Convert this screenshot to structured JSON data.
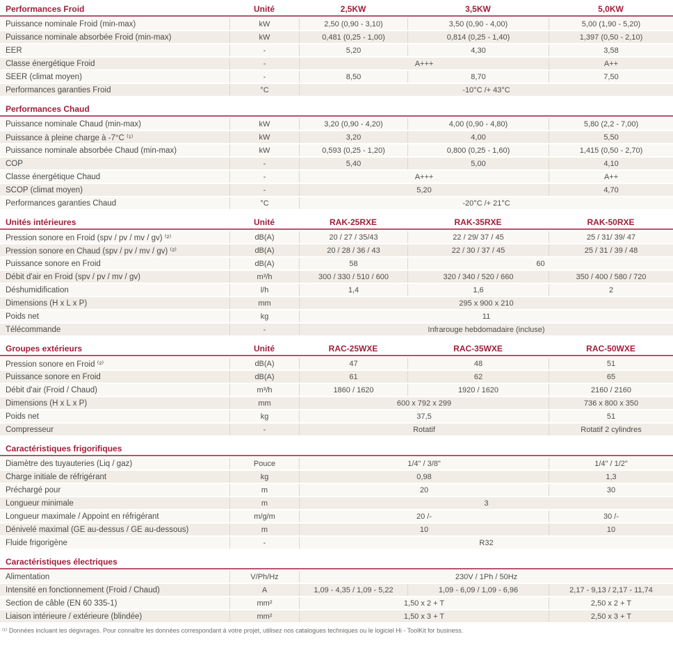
{
  "table": {
    "unit_header": "Unité",
    "sections": [
      {
        "id": "performances-froid",
        "title": "Performances Froid",
        "show_columns": true,
        "columns": [
          "2,5KW",
          "3,5KW",
          "5,0KW"
        ],
        "rows": [
          {
            "label": "Puissance nominale Froid (min-max)",
            "unit": "kW",
            "cells": [
              {
                "text": "2,50 (0,90 - 3,10)",
                "span": 1
              },
              {
                "text": "3,50 (0,90 - 4,00)",
                "span": 1
              },
              {
                "text": "5,00 (1,90 - 5,20)",
                "span": 1
              }
            ]
          },
          {
            "label": "Puissance nominale absorbée Froid (min-max)",
            "unit": "kW",
            "cells": [
              {
                "text": "0,481 (0,25 - 1,00)",
                "span": 1
              },
              {
                "text": "0,814 (0,25 - 1,40)",
                "span": 1
              },
              {
                "text": "1,397 (0,50 - 2,10)",
                "span": 1
              }
            ]
          },
          {
            "label": "EER",
            "unit": "-",
            "cells": [
              {
                "text": "5,20",
                "span": 1
              },
              {
                "text": "4,30",
                "span": 1
              },
              {
                "text": "3,58",
                "span": 1
              }
            ]
          },
          {
            "label": "Classe énergétique Froid",
            "unit": "-",
            "cells": [
              {
                "text": "A+++",
                "span": 2
              },
              {
                "text": "A++",
                "span": 1
              }
            ]
          },
          {
            "label": "SEER (climat moyen)",
            "unit": "-",
            "cells": [
              {
                "text": "8,50",
                "span": 1
              },
              {
                "text": "8,70",
                "span": 1
              },
              {
                "text": "7,50",
                "span": 1
              }
            ]
          },
          {
            "label": "Performances garanties Froid",
            "unit": "°C",
            "cells": [
              {
                "text": "-10°C /+ 43°C",
                "span": 3
              }
            ]
          }
        ]
      },
      {
        "id": "performances-chaud",
        "title": "Performances Chaud",
        "show_columns": false,
        "columns": [],
        "rows": [
          {
            "label": "Puissance nominale Chaud (min-max)",
            "unit": "kW",
            "cells": [
              {
                "text": "3,20 (0,90 - 4,20)",
                "span": 1
              },
              {
                "text": "4,00 (0,90 - 4,80)",
                "span": 1
              },
              {
                "text": "5,80 (2,2 - 7,00)",
                "span": 1
              }
            ]
          },
          {
            "label": "Puissance à pleine charge à -7°C ⁽¹⁾",
            "unit": "kW",
            "cells": [
              {
                "text": "3,20",
                "span": 1
              },
              {
                "text": "4,00",
                "span": 1
              },
              {
                "text": "5,50",
                "span": 1
              }
            ]
          },
          {
            "label": "Puissance nominale absorbée Chaud (min-max)",
            "unit": "kW",
            "cells": [
              {
                "text": "0,593 (0,25 - 1,20)",
                "span": 1
              },
              {
                "text": "0,800 (0,25 - 1,60)",
                "span": 1
              },
              {
                "text": "1,415 (0,50 - 2,70)",
                "span": 1
              }
            ]
          },
          {
            "label": "COP",
            "unit": "-",
            "cells": [
              {
                "text": "5,40",
                "span": 1
              },
              {
                "text": "5,00",
                "span": 1
              },
              {
                "text": "4,10",
                "span": 1
              }
            ]
          },
          {
            "label": "Classe énergétique Chaud",
            "unit": "-",
            "cells": [
              {
                "text": "A+++",
                "span": 2
              },
              {
                "text": "A++",
                "span": 1
              }
            ]
          },
          {
            "label": "SCOP (climat moyen)",
            "unit": "-",
            "cells": [
              {
                "text": "5,20",
                "span": 2
              },
              {
                "text": "4,70",
                "span": 1
              }
            ]
          },
          {
            "label": "Performances garanties Chaud",
            "unit": "°C",
            "cells": [
              {
                "text": "-20°C /+ 21°C",
                "span": 3
              }
            ]
          }
        ]
      },
      {
        "id": "unites-interieures",
        "title": "Unités intérieures",
        "show_columns": true,
        "columns": [
          "RAK-25RXE",
          "RAK-35RXE",
          "RAK-50RXE"
        ],
        "rows": [
          {
            "label": "Pression sonore en Froid (spv / pv / mv / gv) ⁽²⁾",
            "unit": "dB(A)",
            "cells": [
              {
                "text": "20 / 27 / 35/43",
                "span": 1
              },
              {
                "text": "22 / 29/ 37 / 45",
                "span": 1
              },
              {
                "text": "25 / 31/ 39/ 47",
                "span": 1
              }
            ]
          },
          {
            "label": "Pression sonore en Chaud (spv / pv / mv / gv) ⁽²⁾",
            "unit": "dB(A)",
            "cells": [
              {
                "text": "20 / 28 / 36 / 43",
                "span": 1
              },
              {
                "text": "22 / 30 / 37 / 45",
                "span": 1
              },
              {
                "text": "25 / 31 / 39 / 48",
                "span": 1
              }
            ]
          },
          {
            "label": "Puissance sonore en Froid",
            "unit": "dB(A)",
            "cells": [
              {
                "text": "58",
                "span": 1
              },
              {
                "text": "60",
                "span": 2
              }
            ]
          },
          {
            "label": "Débit d'air en Froid (spv / pv / mv / gv)",
            "unit": "m³/h",
            "cells": [
              {
                "text": "300 / 330 / 510 / 600",
                "span": 1
              },
              {
                "text": "320 / 340 / 520 / 660",
                "span": 1
              },
              {
                "text": "350 / 400 / 580 / 720",
                "span": 1
              }
            ]
          },
          {
            "label": "Déshumidification",
            "unit": "l/h",
            "cells": [
              {
                "text": "1,4",
                "span": 1
              },
              {
                "text": "1,6",
                "span": 1
              },
              {
                "text": "2",
                "span": 1
              }
            ]
          },
          {
            "label": "Dimensions (H x L x P)",
            "unit": "mm",
            "cells": [
              {
                "text": "295 x 900 x 210",
                "span": 3
              }
            ]
          },
          {
            "label": "Poids net",
            "unit": "kg",
            "cells": [
              {
                "text": "11",
                "span": 3
              }
            ]
          },
          {
            "label": "Télécommande",
            "unit": "-",
            "cells": [
              {
                "text": "Infrarouge hebdomadaire (incluse)",
                "span": 3
              }
            ]
          }
        ]
      },
      {
        "id": "groupes-exterieurs",
        "title": "Groupes extérieurs",
        "show_columns": true,
        "columns": [
          "RAC-25WXE",
          "RAC-35WXE",
          "RAC-50WXE"
        ],
        "rows": [
          {
            "label": "Pression sonore en Froid ⁽²⁾",
            "unit": "dB(A)",
            "cells": [
              {
                "text": "47",
                "span": 1
              },
              {
                "text": "48",
                "span": 1
              },
              {
                "text": "51",
                "span": 1
              }
            ]
          },
          {
            "label": "Puissance sonore en Froid",
            "unit": "dB(A)",
            "cells": [
              {
                "text": "61",
                "span": 1
              },
              {
                "text": "62",
                "span": 1
              },
              {
                "text": "65",
                "span": 1
              }
            ]
          },
          {
            "label": "Débit d'air (Froid / Chaud)",
            "unit": "m³/h",
            "cells": [
              {
                "text": "1860 / 1620",
                "span": 1
              },
              {
                "text": "1920 / 1620",
                "span": 1
              },
              {
                "text": "2160 / 2160",
                "span": 1
              }
            ]
          },
          {
            "label": "Dimensions (H x L x P)",
            "unit": "mm",
            "cells": [
              {
                "text": "600 x 792 x 299",
                "span": 2
              },
              {
                "text": "736 x 800 x 350",
                "span": 1
              }
            ]
          },
          {
            "label": "Poids net",
            "unit": "kg",
            "cells": [
              {
                "text": "37,5",
                "span": 2
              },
              {
                "text": "51",
                "span": 1
              }
            ]
          },
          {
            "label": "Compresseur",
            "unit": "-",
            "cells": [
              {
                "text": "Rotatif",
                "span": 2
              },
              {
                "text": "Rotatif 2 cylindres",
                "span": 1
              }
            ]
          }
        ]
      },
      {
        "id": "caracteristiques-frigorifiques",
        "title": "Caractéristiques frigorifiques",
        "show_columns": false,
        "columns": [],
        "rows": [
          {
            "label": "Diamètre des tuyauteries (Liq / gaz)",
            "unit": "Pouce",
            "cells": [
              {
                "text": "1/4\" / 3/8\"",
                "span": 2
              },
              {
                "text": "1/4\" / 1/2\"",
                "span": 1
              }
            ]
          },
          {
            "label": "Charge initiale de réfrigérant",
            "unit": "kg",
            "cells": [
              {
                "text": "0,98",
                "span": 2
              },
              {
                "text": "1,3",
                "span": 1
              }
            ]
          },
          {
            "label": "Préchargé pour",
            "unit": "m",
            "cells": [
              {
                "text": "20",
                "span": 2
              },
              {
                "text": "30",
                "span": 1
              }
            ]
          },
          {
            "label": "Longueur minimale",
            "unit": "m",
            "cells": [
              {
                "text": "3",
                "span": 3
              }
            ]
          },
          {
            "label": "Longueur maximale / Appoint en réfrigérant",
            "unit": "m/g/m",
            "cells": [
              {
                "text": "20 /-",
                "span": 2
              },
              {
                "text": "30 /-",
                "span": 1
              }
            ]
          },
          {
            "label": "Dénivelé maximal (GE au-dessus / GE au-dessous)",
            "unit": "m",
            "cells": [
              {
                "text": "10",
                "span": 2
              },
              {
                "text": "10",
                "span": 1
              }
            ]
          },
          {
            "label": "Fluide frigorigène",
            "unit": "-",
            "cells": [
              {
                "text": "R32",
                "span": 3
              }
            ]
          }
        ]
      },
      {
        "id": "caracteristiques-electriques",
        "title": "Caractéristiques électriques",
        "show_columns": false,
        "columns": [],
        "rows": [
          {
            "label": "Alimentation",
            "unit": "V/Ph/Hz",
            "cells": [
              {
                "text": "230V / 1Ph / 50Hz",
                "span": 3
              }
            ]
          },
          {
            "label": "Intensité en fonctionnement (Froid / Chaud)",
            "unit": "A",
            "cells": [
              {
                "text": "1,09 - 4,35 / 1,09 - 5,22",
                "span": 1
              },
              {
                "text": "1,09 - 6,09 / 1,09 - 6,96",
                "span": 1
              },
              {
                "text": "2,17 - 9,13 / 2,17 - 11,74",
                "span": 1
              }
            ]
          },
          {
            "label": "Section de câble (EN 60 335-1)",
            "unit": "mm²",
            "cells": [
              {
                "text": "1,50 x 2 + T",
                "span": 2
              },
              {
                "text": "2,50 x 2 + T",
                "span": 1
              }
            ]
          },
          {
            "label": "Liaison intérieure / extérieure (blindée)",
            "unit": "mm²",
            "cells": [
              {
                "text": "1,50 x 3 + T",
                "span": 2
              },
              {
                "text": "2,50 x 3 + T",
                "span": 1
              }
            ]
          }
        ]
      }
    ]
  },
  "footnote": "⁽¹⁾ Données incluant les dégivrages. Pour connaître les données correspondant à votre projet, utilisez nos catalogues techniques ou le logiciel Hi - ToolKit for business.",
  "colors": {
    "accent_red": "#a01d3a",
    "rule_red": "#b8506b",
    "row_light": "#f9f8f4",
    "row_beige": "#f1ede6"
  }
}
